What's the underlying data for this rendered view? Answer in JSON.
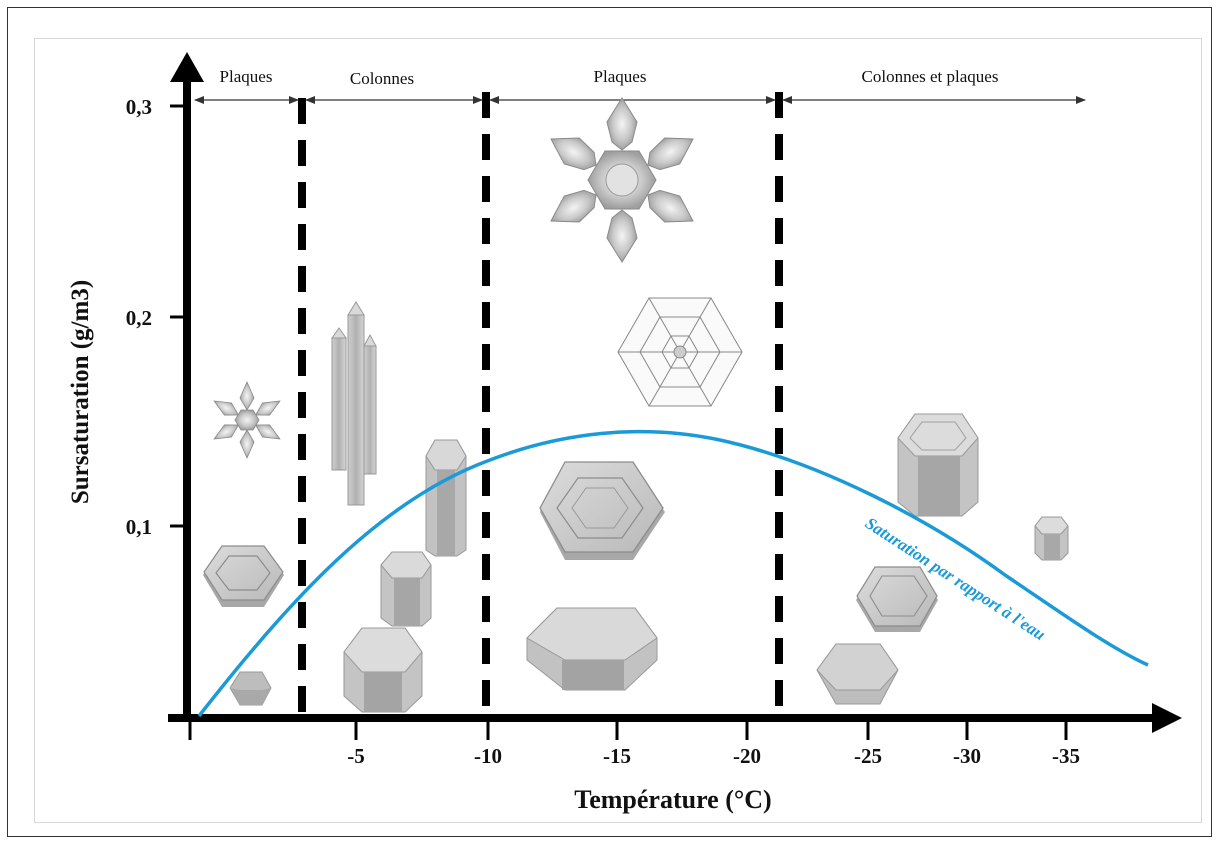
{
  "axes": {
    "xlabel": "Température (°C)",
    "ylabel": "Sursaturation (g/m3)",
    "x_ticks": [
      "-5",
      "-10",
      "-15",
      "-20",
      "-25",
      "-30",
      "-35"
    ],
    "y_ticks": [
      "0,1",
      "0,2",
      "0,3"
    ]
  },
  "regions": [
    {
      "label": "Plaques"
    },
    {
      "label": "Colonnes"
    },
    {
      "label": "Plaques"
    },
    {
      "label": "Colonnes et plaques"
    }
  ],
  "curve": {
    "label": "Saturation par rapport à l'eau",
    "color": "#1a9ad7"
  },
  "colors": {
    "axis": "#000000",
    "crystal_fill": "#c8c8c8",
    "crystal_dark": "#9a9a9a",
    "curve": "#1a9ad7"
  }
}
